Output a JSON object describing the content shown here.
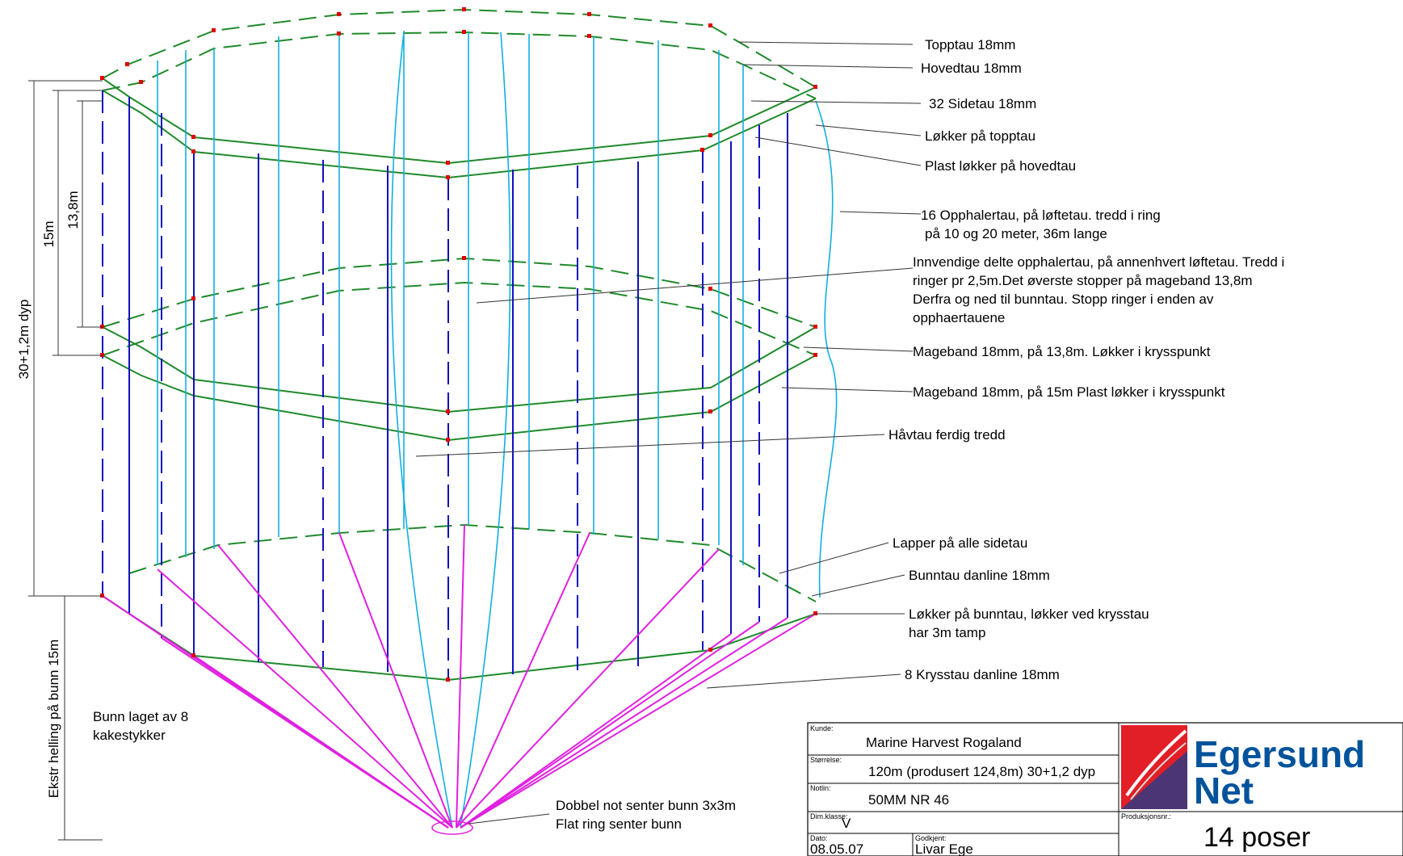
{
  "callouts": [
    "Topptau 18mm",
    "Hovedtau 18mm",
    "32 Sidetau 18mm",
    "Løkker på topptau",
    "Plast løkker på hovedtau",
    "16 Opphalertau, på løftetau. tredd i ring",
    "på 10 og 20 meter, 36m lange",
    "Innvendige delte opphalertau, på annenhvert løftetau. Tredd i",
    "ringer pr 2,5m.Det øverste stopper på mageband 13,8m",
    "Derfra og ned til bunntau. Stopp ringer i enden av",
    "opphaertauene",
    "Mageband 18mm, på 13,8m. Løkker i krysspunkt",
    "Mageband 18mm, på 15m Plast løkker i krysspunkt",
    "Håvtau ferdig tredd",
    "Lapper på alle sidetau",
    "Bunntau danline 18mm",
    "Løkker på bunntau, løkker ved krysstau",
    "har 3m tamp",
    "8 Krysstau danline 18mm"
  ],
  "dimensions": {
    "total_depth": "30+1,2m dyp",
    "depth_15": "15m",
    "depth_13_8": "13,8m",
    "slope": "Ekstr helling på bunn 15m"
  },
  "notes": {
    "bottom_1": "Bunn laget av 8",
    "bottom_2": "kakestykker",
    "center_1": "Dobbel not senter bunn 3x3m",
    "center_2": "Flat ring senter bunn"
  },
  "title_block": {
    "customer_label": "Kunde:",
    "customer": "Marine Harvest Rogaland",
    "size_label": "Størrelse:",
    "size": "120m (produsert 124,8m) 30+1,2 dyp",
    "net_label": "Notlin:",
    "net": "50MM NR 46",
    "class_label": "Dim.klasse:",
    "class": "V",
    "date_label": "Dato:",
    "date": "08.05.07",
    "approved_label": "Godkjent:",
    "approved": "Livar Ege",
    "production_label": "Produksjonsnr.:",
    "production": "14 poser",
    "brand_line1": "Egersund",
    "brand_line2": "Net"
  },
  "colors": {
    "green": "#1f8a2a",
    "blue": "#1010c0",
    "cyan": "#10b0e0",
    "magenta": "#e020e0",
    "red_marker": "#e00000",
    "brand_blue": "#00539b",
    "logo_red": "#e21e26"
  }
}
